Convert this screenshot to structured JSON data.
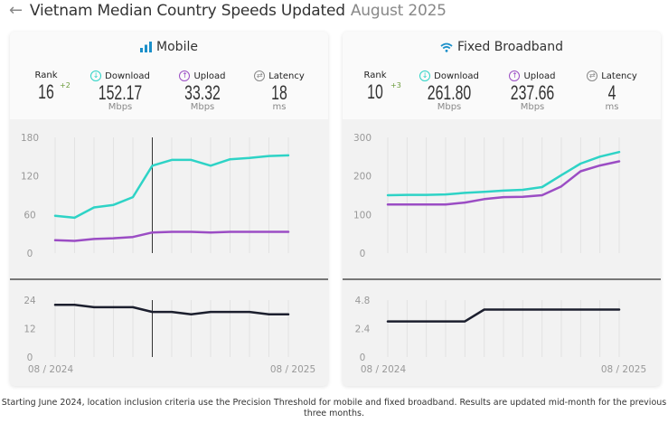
{
  "header": {
    "back_icon": "arrow-left-icon",
    "title": "Vietnam Median Country Speeds Updated",
    "date": "August 2025"
  },
  "panels": [
    {
      "title": "Mobile",
      "icon": "signal-bars-icon",
      "rank_label": "Rank",
      "rank": "16",
      "rank_change": "+2",
      "download_label": "Download",
      "download": "152.17",
      "download_unit": "Mbps",
      "upload_label": "Upload",
      "upload": "33.32",
      "upload_unit": "Mbps",
      "latency_label": "Latency",
      "latency": "18",
      "latency_unit": "ms"
    },
    {
      "title": "Fixed Broadband",
      "icon": "wifi-icon",
      "rank_label": "Rank",
      "rank": "10",
      "rank_change": "+3",
      "download_label": "Download",
      "download": "261.80",
      "download_unit": "Mbps",
      "upload_label": "Upload",
      "upload": "237.66",
      "upload_unit": "Mbps",
      "latency_label": "Latency",
      "latency": "4",
      "latency_unit": "ms"
    }
  ],
  "colors": {
    "download": "#2ed3c6",
    "upload": "#9b4dc4",
    "latency": "#1c1f2e",
    "rank_change": "#6a9a3a",
    "mobile_icon": "#1a8fc9",
    "wifi_icon": "#1a8fc9"
  },
  "footer": {
    "note": "Starting June 2024, location inclusion criteria use the Precision Threshold for mobile and fixed broadband. Results are updated mid-month for the previous three months."
  },
  "chart_data": [
    {
      "id": "mobile-speed",
      "type": "line",
      "title": "Mobile speeds",
      "x": [
        "08/2024",
        "09/2024",
        "10/2024",
        "11/2024",
        "12/2024",
        "01/2025",
        "02/2025",
        "03/2025",
        "04/2025",
        "05/2025",
        "06/2025",
        "07/2025",
        "08/2025"
      ],
      "ylim": [
        0,
        180
      ],
      "yticks": [
        "0",
        "60",
        "120",
        "180"
      ],
      "grid": "vertical",
      "marker_index": 5,
      "series": [
        {
          "name": "Download",
          "values": [
            58,
            55,
            71,
            75,
            87,
            136,
            145,
            145,
            136,
            146,
            148,
            151,
            152
          ]
        },
        {
          "name": "Upload",
          "values": [
            20,
            19,
            22,
            23,
            25,
            32,
            33,
            33,
            32,
            33,
            33,
            33,
            33
          ]
        }
      ]
    },
    {
      "id": "mobile-latency",
      "type": "line",
      "title": "Mobile latency",
      "x": [
        "08/2024",
        "09/2024",
        "10/2024",
        "11/2024",
        "12/2024",
        "01/2025",
        "02/2025",
        "03/2025",
        "04/2025",
        "05/2025",
        "06/2025",
        "07/2025",
        "08/2025"
      ],
      "xtick_labels": [
        "08 / 2024",
        "08 / 2025"
      ],
      "ylim": [
        0,
        24
      ],
      "yticks": [
        "0",
        "12",
        "24"
      ],
      "grid": "vertical",
      "marker_index": 5,
      "series": [
        {
          "name": "Latency",
          "values": [
            22,
            22,
            21,
            21,
            21,
            19,
            19,
            18,
            19,
            19,
            19,
            18,
            18
          ]
        }
      ]
    },
    {
      "id": "fixed-speed",
      "type": "line",
      "title": "Fixed Broadband speeds",
      "x": [
        "08/2024",
        "09/2024",
        "10/2024",
        "11/2024",
        "12/2024",
        "01/2025",
        "02/2025",
        "03/2025",
        "04/2025",
        "05/2025",
        "06/2025",
        "07/2025",
        "08/2025"
      ],
      "ylim": [
        0,
        300
      ],
      "yticks": [
        "0",
        "100",
        "200",
        "300"
      ],
      "grid": "vertical",
      "series": [
        {
          "name": "Download",
          "values": [
            150,
            151,
            151,
            152,
            156,
            159,
            162,
            164,
            171,
            202,
            232,
            250,
            262
          ]
        },
        {
          "name": "Upload",
          "values": [
            126,
            126,
            126,
            126,
            131,
            140,
            145,
            146,
            150,
            173,
            212,
            227,
            238
          ]
        }
      ]
    },
    {
      "id": "fixed-latency",
      "type": "line",
      "title": "Fixed Broadband latency",
      "x": [
        "08/2024",
        "09/2024",
        "10/2024",
        "11/2024",
        "12/2024",
        "01/2025",
        "02/2025",
        "03/2025",
        "04/2025",
        "05/2025",
        "06/2025",
        "07/2025",
        "08/2025"
      ],
      "xtick_labels": [
        "08 / 2024",
        "08 / 2025"
      ],
      "ylim": [
        0,
        4.8
      ],
      "yticks": [
        "0",
        "2.4",
        "4.8"
      ],
      "grid": "vertical",
      "series": [
        {
          "name": "Latency",
          "values": [
            3,
            3,
            3,
            3,
            3,
            4,
            4,
            4,
            4,
            4,
            4,
            4,
            4
          ]
        }
      ]
    }
  ]
}
